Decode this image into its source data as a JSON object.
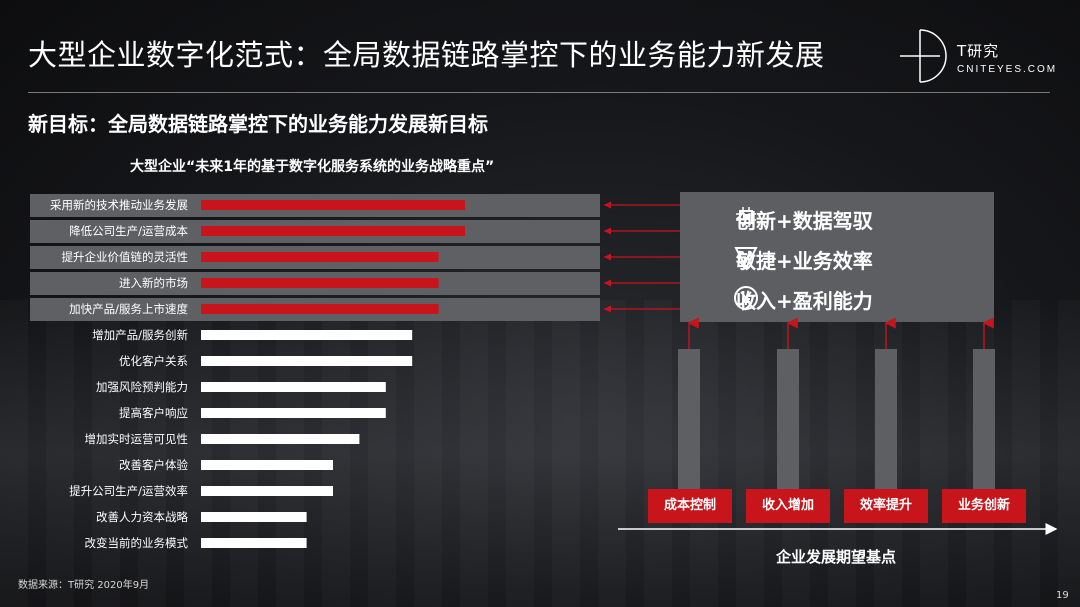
{
  "header": {
    "title": "大型企业数字化范式：全局数据链路掌控下的业务能力新发展",
    "subtitle": "新目标：全局数据链路掌控下的业务能力发展新目标",
    "logo_cn": "T研究",
    "logo_en": "CNITEYES.COM"
  },
  "chart_data": {
    "type": "bar",
    "orientation": "horizontal",
    "title": "大型企业“未来1年的基于数字化服务系统的业务战略重点”",
    "categories": [
      "采用新的技术推动业务发展",
      "降低公司生产/运营成本",
      "提升企业价值链的灵活性",
      "进入新的市场",
      "加快产品/服务上市速度",
      "增加产品/服务创新",
      "优化客户关系",
      "加强风险预判能力",
      "提高客户响应",
      "增加实时运营可见性",
      "改善客户体验",
      "提升公司生产/运营效率",
      "改善人力资本战略",
      "改变当前的业务模式"
    ],
    "values": [
      100,
      100,
      90,
      90,
      90,
      80,
      80,
      70,
      70,
      60,
      50,
      50,
      40,
      40
    ],
    "highlighted_count": 5,
    "highlight_color": "#c8141b",
    "bar_color": "#ffffff",
    "row_highlight_color": "#5f6064",
    "xlim": [
      0,
      100
    ]
  },
  "goals": {
    "items": [
      {
        "label": "创新+数据驾驭",
        "icon": "chip-icon"
      },
      {
        "label": "敏捷+业务效率",
        "icon": "speed-icon"
      },
      {
        "label": "收入+盈利能力",
        "icon": "yen-coin-icon"
      }
    ],
    "arrow_color": "#c8141b"
  },
  "outcomes": {
    "buttons": [
      "成本控制",
      "收入增加",
      "效率提升",
      "业务创新"
    ],
    "axis_label": "企业发展期望基点"
  },
  "footer": {
    "source": "数据来源：T研究 2020年9月",
    "page": "19"
  }
}
